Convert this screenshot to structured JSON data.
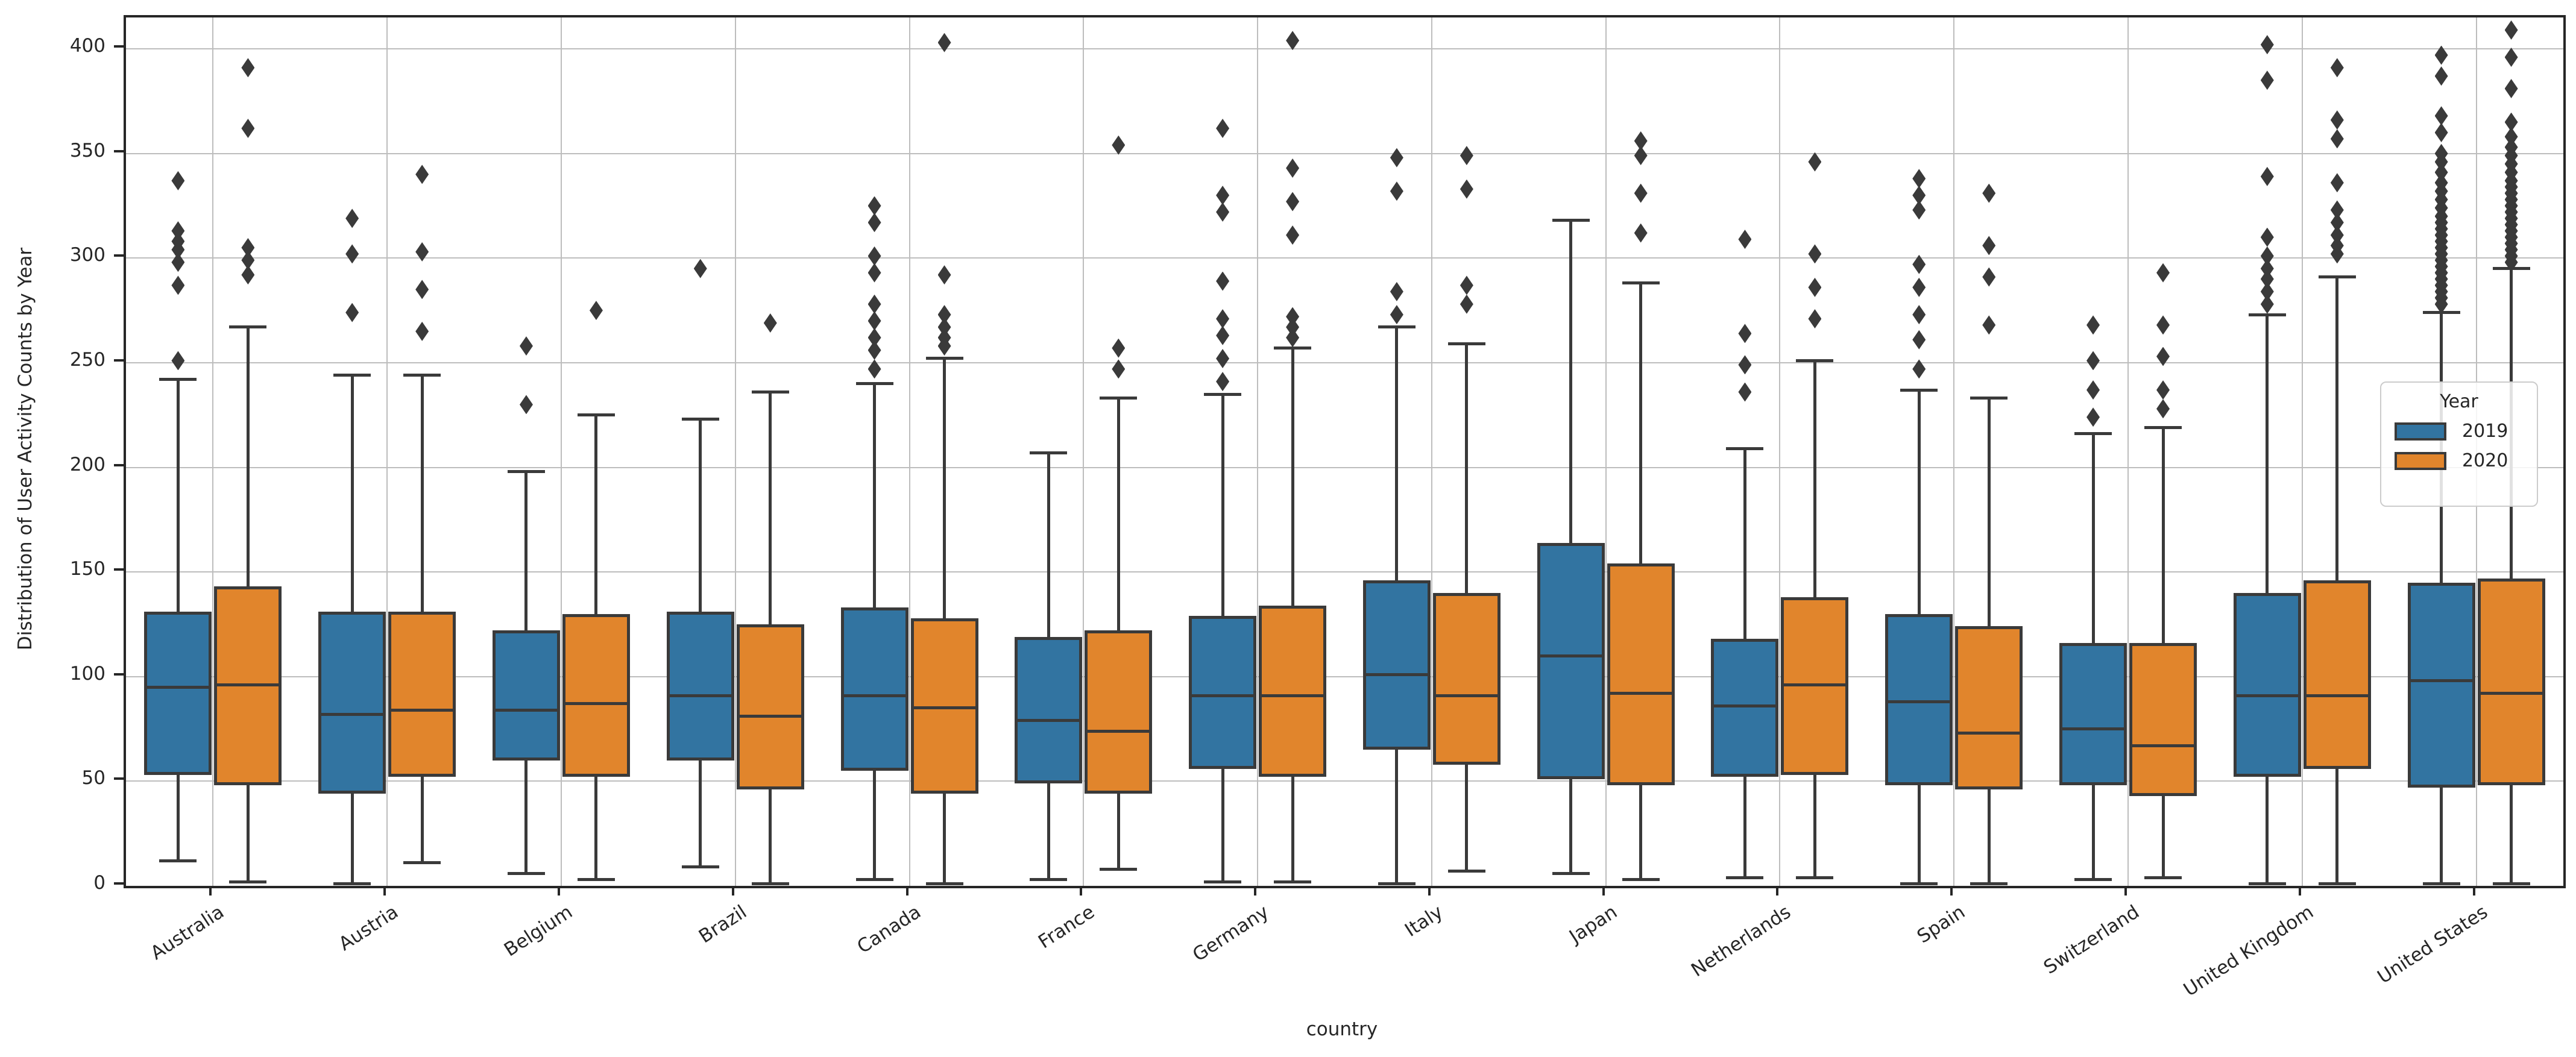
{
  "figure": {
    "x_axis_title": "country",
    "y_axis_title": "Distribution of User Activity Counts by Year",
    "legend": {
      "title": "Year",
      "entries": [
        {
          "label": "2019",
          "color": "#3274A1"
        },
        {
          "label": "2020",
          "color": "#E1852C"
        }
      ]
    },
    "colors": {
      "box_2019": "#3274A1",
      "box_2020": "#E1852C",
      "line": "#3a3a3a",
      "grid": "#bdbdbd",
      "spine": "#262626",
      "text": "#262626",
      "background": "#ffffff"
    }
  },
  "chart_data": {
    "type": "grouped_boxplot",
    "title": "",
    "xlabel": "country",
    "ylabel": "Distribution of User Activity Counts by Year",
    "ylim": [
      0,
      415
    ],
    "yticks": [
      0,
      50,
      100,
      150,
      200,
      250,
      300,
      350,
      400
    ],
    "grid": true,
    "legend_position": "right-center",
    "categories": [
      "Australia",
      "Austria",
      "Belgium",
      "Brazil",
      "Canada",
      "France",
      "Germany",
      "Italy",
      "Japan",
      "Netherlands",
      "Spain",
      "Switzerland",
      "United Kingdom",
      "United States"
    ],
    "series": [
      {
        "name": "2019",
        "color": "#3274A1",
        "boxes": [
          {
            "whislo": 12,
            "q1": 53,
            "med": 95,
            "q3": 131,
            "whishi": 242,
            "outliers": [
              251,
              287,
              298,
              304,
              308,
              313,
              337
            ]
          },
          {
            "whislo": 1,
            "q1": 44,
            "med": 82,
            "q3": 131,
            "whishi": 244,
            "outliers": [
              274,
              302,
              319
            ]
          },
          {
            "whislo": 6,
            "q1": 60,
            "med": 84,
            "q3": 122,
            "whishi": 198,
            "outliers": [
              230,
              258
            ]
          },
          {
            "whislo": 9,
            "q1": 60,
            "med": 91,
            "q3": 131,
            "whishi": 223,
            "outliers": [
              295
            ]
          },
          {
            "whislo": 3,
            "q1": 55,
            "med": 91,
            "q3": 133,
            "whishi": 240,
            "outliers": [
              247,
              256,
              262,
              270,
              278,
              293,
              301,
              317,
              325
            ]
          },
          {
            "whislo": 3,
            "q1": 49,
            "med": 79,
            "q3": 119,
            "whishi": 207,
            "outliers": []
          },
          {
            "whislo": 2,
            "q1": 56,
            "med": 91,
            "q3": 129,
            "whishi": 235,
            "outliers": [
              241,
              252,
              263,
              271,
              289,
              322,
              330,
              362
            ]
          },
          {
            "whislo": 1,
            "q1": 65,
            "med": 101,
            "q3": 146,
            "whishi": 267,
            "outliers": [
              273,
              284,
              332,
              348
            ]
          },
          {
            "whislo": 6,
            "q1": 51,
            "med": 110,
            "q3": 164,
            "whishi": 318,
            "outliers": []
          },
          {
            "whislo": 4,
            "q1": 52,
            "med": 86,
            "q3": 118,
            "whishi": 209,
            "outliers": [
              236,
              249,
              264,
              309
            ]
          },
          {
            "whislo": 1,
            "q1": 48,
            "med": 88,
            "q3": 130,
            "whishi": 237,
            "outliers": [
              247,
              261,
              273,
              286,
              297,
              323,
              330,
              338
            ]
          },
          {
            "whislo": 3,
            "q1": 48,
            "med": 75,
            "q3": 116,
            "whishi": 216,
            "outliers": [
              224,
              237,
              251,
              268
            ]
          },
          {
            "whislo": 1,
            "q1": 52,
            "med": 91,
            "q3": 140,
            "whishi": 273,
            "outliers": [
              278,
              284,
              290,
              295,
              301,
              310,
              339,
              385,
              402
            ]
          },
          {
            "whislo": 1,
            "q1": 47,
            "med": 98,
            "q3": 145,
            "whishi": 274,
            "outliers": [
              278,
              281,
              284,
              287,
              290,
              293,
              296,
              299,
              302,
              305,
              308,
              311,
              314,
              317,
              320,
              324,
              328,
              332,
              336,
              341,
              346,
              350,
              360,
              368,
              387,
              397
            ]
          }
        ]
      },
      {
        "name": "2020",
        "color": "#E1852C",
        "boxes": [
          {
            "whislo": 2,
            "q1": 48,
            "med": 96,
            "q3": 143,
            "whishi": 267,
            "outliers": [
              292,
              299,
              305,
              362,
              391
            ]
          },
          {
            "whislo": 11,
            "q1": 52,
            "med": 84,
            "q3": 131,
            "whishi": 244,
            "outliers": [
              265,
              285,
              303,
              340
            ]
          },
          {
            "whislo": 3,
            "q1": 52,
            "med": 87,
            "q3": 130,
            "whishi": 225,
            "outliers": [
              275
            ]
          },
          {
            "whislo": 1,
            "q1": 46,
            "med": 81,
            "q3": 125,
            "whishi": 236,
            "outliers": [
              269
            ]
          },
          {
            "whislo": 1,
            "q1": 44,
            "med": 85,
            "q3": 128,
            "whishi": 252,
            "outliers": [
              258,
              262,
              267,
              273,
              292,
              403
            ]
          },
          {
            "whislo": 8,
            "q1": 44,
            "med": 74,
            "q3": 122,
            "whishi": 233,
            "outliers": [
              247,
              257,
              354
            ]
          },
          {
            "whislo": 2,
            "q1": 52,
            "med": 91,
            "q3": 134,
            "whishi": 257,
            "outliers": [
              262,
              267,
              272,
              311,
              327,
              343,
              404
            ]
          },
          {
            "whislo": 7,
            "q1": 58,
            "med": 91,
            "q3": 140,
            "whishi": 259,
            "outliers": [
              278,
              287,
              333,
              349
            ]
          },
          {
            "whislo": 3,
            "q1": 48,
            "med": 92,
            "q3": 154,
            "whishi": 288,
            "outliers": [
              312,
              331,
              349,
              356
            ]
          },
          {
            "whislo": 4,
            "q1": 53,
            "med": 96,
            "q3": 138,
            "whishi": 251,
            "outliers": [
              271,
              286,
              302,
              346
            ]
          },
          {
            "whislo": 1,
            "q1": 46,
            "med": 73,
            "q3": 124,
            "whishi": 233,
            "outliers": [
              268,
              291,
              306,
              331
            ]
          },
          {
            "whislo": 4,
            "q1": 43,
            "med": 67,
            "q3": 116,
            "whishi": 219,
            "outliers": [
              228,
              237,
              253,
              268,
              293
            ]
          },
          {
            "whislo": 1,
            "q1": 56,
            "med": 91,
            "q3": 146,
            "whishi": 291,
            "outliers": [
              302,
              306,
              311,
              317,
              323,
              336,
              357,
              366,
              391
            ]
          },
          {
            "whislo": 1,
            "q1": 48,
            "med": 92,
            "q3": 147,
            "whishi": 295,
            "outliers": [
              298,
              301,
              304,
              307,
              310,
              313,
              316,
              319,
              322,
              325,
              328,
              331,
              334,
              337,
              341,
              345,
              349,
              353,
              358,
              365,
              381,
              396,
              409
            ]
          }
        ]
      }
    ]
  }
}
